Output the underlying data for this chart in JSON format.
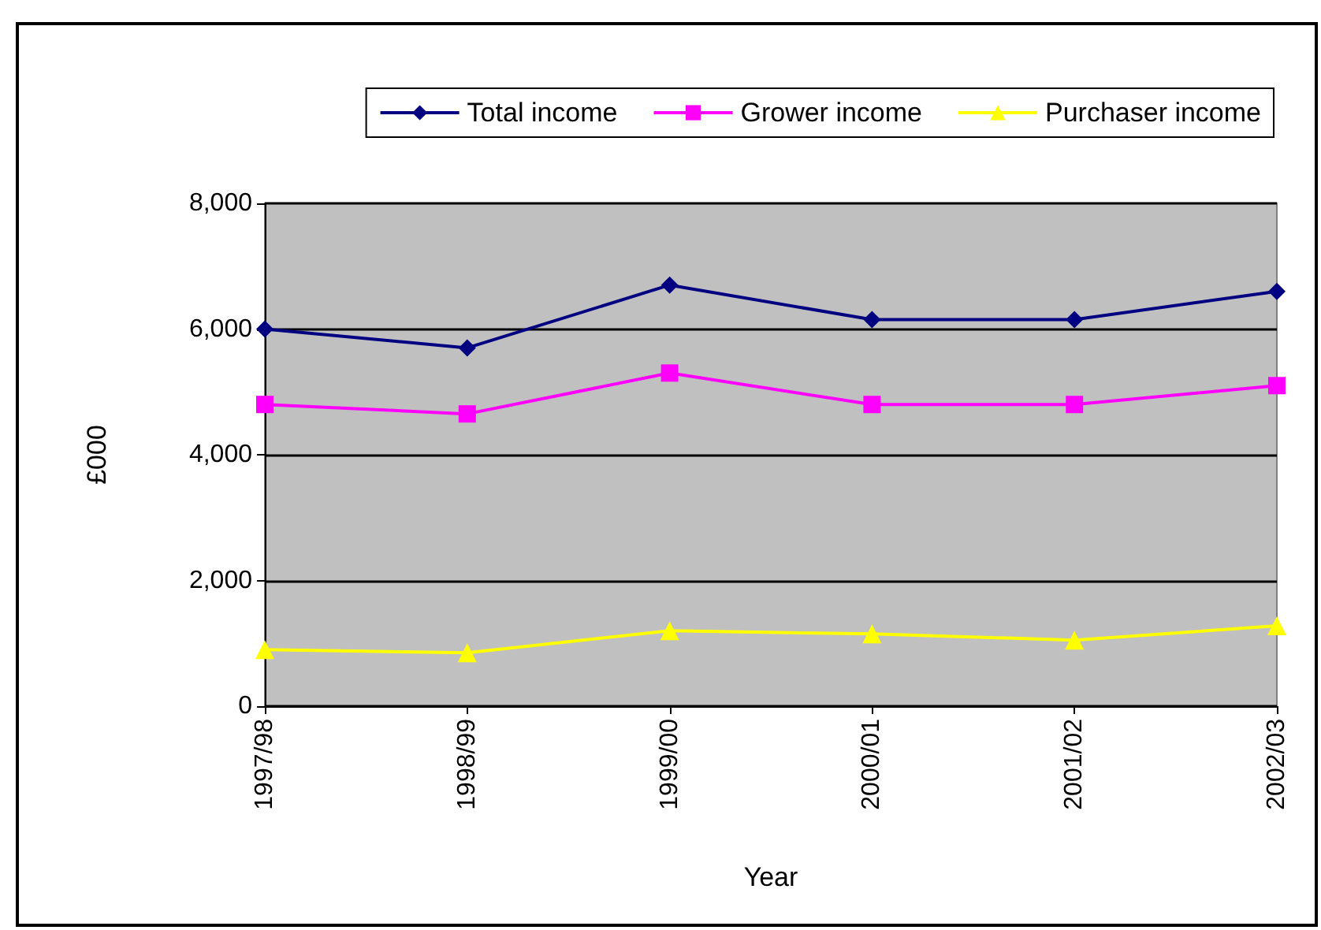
{
  "chart_data": {
    "type": "line",
    "xlabel": "Year",
    "ylabel": "£000",
    "categories": [
      "1997/98",
      "1998/99",
      "1999/00",
      "2000/01",
      "2001/02",
      "2002/03"
    ],
    "series": [
      {
        "name": "Total income",
        "color": "#000080",
        "marker": "diamond",
        "values": [
          6000,
          5700,
          6700,
          6150,
          6150,
          6600
        ]
      },
      {
        "name": "Grower income",
        "color": "#ff00ff",
        "marker": "square",
        "values": [
          4800,
          4650,
          5300,
          4800,
          4800,
          5100
        ]
      },
      {
        "name": "Purchaser income",
        "color": "#ffff00",
        "marker": "triangle",
        "values": [
          900,
          850,
          1200,
          1150,
          1050,
          1280
        ]
      }
    ],
    "ylim": [
      0,
      8000
    ],
    "yticks": [
      0,
      {
        "value": 2000,
        "label": "2,000"
      },
      {
        "value": 4000,
        "label": "4,000"
      },
      {
        "value": 6000,
        "label": "6,000"
      },
      {
        "value": 8000,
        "label": "8,000"
      }
    ],
    "grid": "y",
    "legend": "top right",
    "line_style": "solid"
  }
}
